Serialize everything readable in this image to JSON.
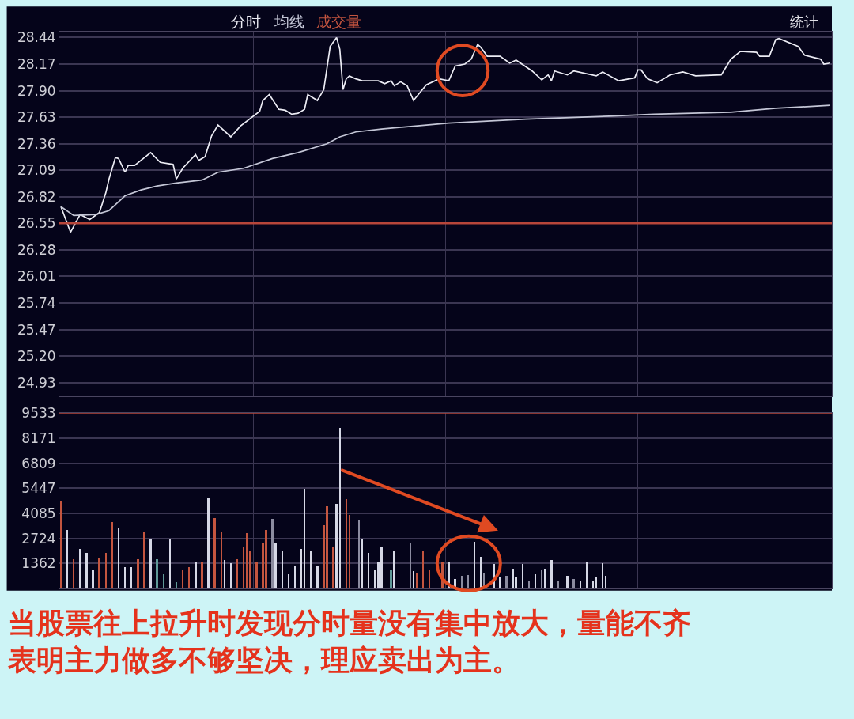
{
  "chart_data": [
    {
      "type": "line",
      "categories": [
        null,
        null,
        null,
        null,
        null,
        null,
        null,
        null,
        null,
        null,
        null,
        null,
        null,
        null,
        null,
        null,
        null,
        null,
        null,
        null,
        null,
        null,
        null,
        null,
        null,
        null,
        null,
        null,
        null,
        null,
        null,
        null,
        null,
        null,
        null,
        null,
        null,
        null,
        null,
        null,
        null,
        null,
        null,
        null,
        null,
        null,
        null,
        null,
        null,
        null,
        null,
        null,
        null,
        null,
        null,
        null,
        null,
        null,
        null,
        null,
        null,
        null,
        null,
        null,
        null,
        null,
        null,
        null,
        null,
        null,
        null,
        null,
        null,
        null,
        null,
        null,
        null,
        null,
        null,
        null,
        null,
        null,
        null,
        null,
        null,
        null,
        null,
        null,
        null,
        null,
        null,
        null,
        null,
        null,
        null,
        null,
        null,
        null,
        null,
        null,
        null,
        null,
        null,
        null,
        null,
        null,
        null,
        null,
        null,
        null,
        null,
        null,
        null,
        null,
        null,
        null,
        null,
        null,
        null,
        null,
        null,
        null,
        null,
        null,
        null,
        null,
        null,
        null,
        null,
        null,
        null,
        null,
        null,
        null,
        null,
        null,
        null,
        null,
        null,
        null,
        null,
        null,
        null,
        null,
        null,
        null,
        null,
        null,
        null,
        null,
        null,
        null,
        null,
        null,
        null,
        null,
        null,
        null,
        null,
        null,
        null,
        null,
        null,
        null,
        null,
        null,
        null,
        null,
        null,
        null,
        null,
        null,
        null,
        null,
        null,
        null,
        null,
        null,
        null,
        null,
        null,
        null,
        null,
        null,
        null,
        null,
        null,
        null,
        null,
        null,
        null,
        null,
        null,
        null,
        null,
        null,
        null,
        null,
        null,
        null,
        null,
        null,
        null,
        null,
        null,
        null,
        null,
        null,
        null,
        null,
        null,
        null,
        null,
        null,
        null,
        null,
        null,
        null,
        null,
        null,
        null,
        null,
        null,
        null,
        null,
        null,
        null,
        null,
        null,
        null,
        null,
        null,
        null,
        null,
        null,
        null,
        null,
        null,
        null,
        null,
        null
      ],
      "ylim": [
        24.79,
        28.5
      ],
      "yticks": [
        24.93,
        {
          "value": 25.2,
          "label": "25.20"
        },
        25.47,
        25.74,
        26.01,
        26.28,
        26.55,
        26.82,
        27.09,
        27.36,
        27.63,
        {
          "value": 27.9,
          "label": "27.90"
        },
        28.17,
        28.44
      ],
      "grid": true,
      "tick_labels": "y",
      "ref_lines": [
        {
          "axis": "y",
          "value": 26.55,
          "color": "#b8463a"
        }
      ],
      "annotations": [
        "统计"
      ],
      "series": [
        {
          "name": "分时",
          "color": "#ececf4",
          "values": [
            26.72,
            null,
            null,
            26.46,
            null,
            null,
            26.64,
            null,
            null,
            26.59,
            null,
            null,
            26.66,
            null,
            26.86,
            27.0,
            null,
            27.22,
            27.21,
            null,
            27.07,
            27.14,
            null,
            27.14,
            null,
            null,
            null,
            null,
            27.27,
            null,
            null,
            27.17,
            null,
            null,
            null,
            27.15,
            27.0,
            null,
            27.11,
            null,
            null,
            null,
            27.25,
            27.19,
            null,
            27.23,
            null,
            27.44,
            null,
            27.55,
            null,
            null,
            null,
            27.43,
            null,
            null,
            27.54,
            null,
            null,
            null,
            null,
            null,
            27.69,
            27.8,
            null,
            27.86,
            null,
            null,
            27.71,
            null,
            27.7,
            null,
            27.66,
            null,
            27.67,
            null,
            27.71,
            27.86,
            null,
            null,
            27.8,
            null,
            27.91,
            null,
            28.35,
            null,
            28.44,
            28.32,
            27.91,
            28.02,
            28.05,
            null,
            28.02,
            null,
            28.0,
            null,
            null,
            null,
            null,
            28.0,
            null,
            27.97,
            null,
            28.0,
            27.95,
            null,
            27.99,
            null,
            27.95,
            null,
            27.8,
            null,
            null,
            null,
            27.96,
            null,
            null,
            null,
            28.02,
            null,
            null,
            28.0,
            null,
            28.15,
            null,
            null,
            28.17,
            null,
            28.22,
            null,
            28.37,
            28.34,
            null,
            28.25,
            null,
            null,
            null,
            28.25,
            null,
            null,
            28.18,
            null,
            28.21,
            null,
            null,
            null,
            null,
            28.1,
            null,
            null,
            28.01,
            null,
            28.06,
            28.0,
            28.1,
            null,
            null,
            null,
            28.06,
            null,
            28.1,
            null,
            null,
            null,
            null,
            null,
            null,
            28.05,
            null,
            28.09,
            null,
            null,
            null,
            null,
            28.0,
            null,
            null,
            null,
            null,
            28.03,
            28.11,
            28.11,
            null,
            28.02,
            null,
            null,
            27.98,
            null,
            null,
            null,
            28.06,
            null,
            null,
            null,
            28.09,
            null,
            null,
            null,
            28.05,
            null,
            null,
            null,
            null,
            null,
            null,
            null,
            28.06,
            null,
            null,
            28.22,
            null,
            null,
            28.3,
            null,
            null,
            null,
            null,
            28.29,
            28.25,
            null,
            null,
            28.25,
            null,
            28.42,
            28.43,
            null,
            null,
            null,
            null,
            null,
            28.35,
            null,
            28.26,
            null,
            null,
            null,
            null,
            28.22,
            28.17,
            null,
            28.18
          ]
        },
        {
          "name": "均线",
          "color": "#c4c6d6",
          "values": [
            26.72,
            null,
            null,
            null,
            26.63,
            null,
            null,
            null,
            null,
            null,
            null,
            26.64,
            null,
            null,
            null,
            26.68,
            null,
            null,
            null,
            null,
            26.83,
            null,
            null,
            null,
            null,
            26.89,
            null,
            null,
            null,
            null,
            26.93,
            null,
            null,
            null,
            null,
            null,
            26.96,
            null,
            null,
            null,
            null,
            null,
            null,
            null,
            26.99,
            null,
            null,
            null,
            null,
            27.07,
            null,
            null,
            null,
            null,
            null,
            null,
            null,
            27.11,
            null,
            null,
            null,
            null,
            null,
            null,
            null,
            null,
            27.21,
            null,
            null,
            null,
            null,
            null,
            null,
            null,
            27.27,
            null,
            null,
            null,
            null,
            null,
            null,
            null,
            null,
            27.36,
            null,
            null,
            null,
            27.43,
            null,
            null,
            null,
            null,
            27.48,
            null,
            null,
            null,
            null,
            null,
            null,
            null,
            27.51,
            null,
            null,
            null,
            null,
            null,
            null,
            null,
            null,
            null,
            null,
            null,
            null,
            null,
            27.55,
            null,
            null,
            null,
            null,
            null,
            null,
            27.57,
            null,
            null,
            null,
            null,
            null,
            null,
            null,
            null,
            null,
            null,
            null,
            null,
            null,
            null,
            null,
            null,
            null,
            null,
            null,
            null,
            null,
            null,
            null,
            27.61,
            null,
            null,
            null,
            null,
            null,
            null,
            null,
            null,
            null,
            null,
            null,
            null,
            null,
            null,
            null,
            null,
            null,
            null,
            null,
            null,
            null,
            null,
            null,
            null,
            null,
            27.64,
            null,
            null,
            null,
            null,
            null,
            null,
            null,
            null,
            null,
            null,
            null,
            null,
            null,
            27.66,
            null,
            null,
            null,
            null,
            null,
            null,
            null,
            null,
            null,
            null,
            null,
            null,
            null,
            null,
            null,
            null,
            null,
            null,
            null,
            null,
            null,
            null,
            null,
            27.68,
            null,
            null,
            null,
            null,
            null,
            null,
            null,
            null,
            null,
            null,
            null,
            null,
            null,
            27.72,
            null,
            null,
            null,
            null,
            null,
            null,
            null,
            null,
            null,
            null,
            null,
            null,
            null,
            null,
            null,
            null,
            27.75
          ]
        }
      ]
    },
    {
      "type": "bar",
      "categories": [
        null,
        null,
        null,
        null,
        null,
        null,
        null,
        null,
        null,
        null,
        null,
        null,
        null,
        null,
        null,
        null,
        null,
        null,
        null,
        null,
        null,
        null,
        null,
        null,
        null,
        null,
        null,
        null,
        null,
        null,
        null,
        null,
        null,
        null,
        null,
        null,
        null,
        null,
        null,
        null,
        null,
        null,
        null,
        null,
        null,
        null,
        null,
        null,
        null,
        null,
        null,
        null,
        null,
        null,
        null,
        null,
        null,
        null,
        null,
        null,
        null,
        null,
        null,
        null,
        null,
        null,
        null,
        null,
        null,
        null,
        null,
        null,
        null,
        null,
        null,
        null,
        null,
        null,
        null,
        null,
        null,
        null,
        null,
        null,
        null,
        null,
        null,
        null,
        null,
        null,
        null,
        null,
        null,
        null,
        null,
        null,
        null,
        null,
        null,
        null,
        null,
        null,
        null,
        null,
        null,
        null,
        null,
        null,
        null,
        null,
        null,
        null,
        null,
        null,
        null,
        null,
        null,
        null,
        null,
        null,
        null,
        null,
        null,
        null,
        null,
        null,
        null,
        null,
        null,
        null,
        null,
        null,
        null,
        null,
        null,
        null,
        null,
        null,
        null,
        null,
        null,
        null,
        null,
        null,
        null,
        null,
        null,
        null,
        null,
        null,
        null,
        null,
        null,
        null,
        null,
        null,
        null,
        null,
        null,
        null,
        null,
        null,
        null,
        null,
        null,
        null,
        null,
        null,
        null,
        null,
        null,
        null,
        null,
        null,
        null,
        null,
        null,
        null,
        null,
        null,
        null,
        null,
        null,
        null,
        null,
        null,
        null,
        null,
        null,
        null,
        null,
        null,
        null,
        null,
        null,
        null,
        null,
        null,
        null,
        null,
        null,
        null,
        null,
        null,
        null,
        null,
        null,
        null,
        null,
        null,
        null,
        null,
        null,
        null,
        null,
        null,
        null,
        null,
        null,
        null,
        null,
        null,
        null,
        null,
        null,
        null,
        null,
        null,
        null,
        null,
        null,
        null,
        null,
        null,
        null,
        null,
        null,
        null,
        null,
        null,
        null
      ],
      "ylim": [
        0,
        9533
      ],
      "yticks": [
        1362,
        2724,
        4085,
        5447,
        6809,
        8171,
        9533
      ],
      "grid": true,
      "tick_labels": "y",
      "ref_lines": [
        {
          "axis": "y",
          "value": 9533,
          "color": "#b8463a"
        }
      ],
      "annotations": [
        "当股票往上拉升时发现分时量没有集中放大，量能不齐表明主力做多不够坚决，理应卖出为主。"
      ],
      "series": [
        {
          "name": "成交量",
          "color": "#c4553f",
          "values": [
            4760,
            null,
            3150,
            null,
            1590,
            null,
            2140,
            null,
            1930,
            null,
            970,
            null,
            1660,
            null,
            1930,
            null,
            3590,
            null,
            3240,
            null,
            1170,
            null,
            1170,
            null,
            1590,
            null,
            3100,
            null,
            2690,
            null,
            1590,
            null,
            760,
            null,
            2690,
            null,
            350,
            null,
            970,
            null,
            1170,
            null,
            1450,
            null,
            1450,
            null,
            4870,
            null,
            3800,
            null,
            3040,
            1520,
            null,
            1380,
            null,
            1590,
            null,
            2280,
            3010,
            2000,
            null,
            1450,
            null,
            2420,
            3150,
            null,
            3770,
            2420,
            null,
            2070,
            null,
            760,
            null,
            1240,
            null,
            2140,
            5420,
            null,
            2000,
            null,
            1200,
            null,
            3450,
            4480,
            null,
            2280,
            4600,
            8700,
            null,
            4830,
            4000,
            null,
            null,
            3730,
            2690,
            null,
            1930,
            null,
            1040,
            1450,
            2240,
            null,
            null,
            1040,
            2000,
            null,
            null,
            null,
            null,
            2440,
            950,
            800,
            null,
            2020,
            null,
            1020,
            null,
            null,
            null,
            1440,
            null,
            1400,
            null,
            510,
            null,
            660,
            null,
            730,
            null,
            2520,
            null,
            1690,
            870,
            null,
            null,
            1340,
            null,
            590,
            null,
            660,
            null,
            1060,
            590,
            null,
            1340,
            null,
            440,
            null,
            770,
            null,
            1020,
            1060,
            null,
            1520,
            null,
            440,
            null,
            null,
            690,
            null,
            510,
            null,
            440,
            null,
            1420,
            null,
            440,
            590,
            null,
            1370,
            690,
            null,
            null,
            null,
            null,
            null,
            null,
            null,
            null,
            null,
            null,
            null,
            null,
            null,
            null,
            null,
            null,
            null,
            null,
            null,
            null,
            null,
            null,
            null,
            null,
            null,
            null,
            null,
            null,
            null,
            null,
            null,
            null,
            null,
            null,
            null,
            null,
            null,
            null,
            null,
            null,
            null,
            null,
            null,
            null,
            null,
            null,
            null,
            null,
            null,
            null,
            null,
            null,
            null,
            null,
            null,
            null,
            null,
            null,
            null,
            null,
            null,
            null,
            null,
            null,
            null,
            null,
            null,
            null,
            null,
            null
          ],
          "colors": [
            "#c4553f",
            null,
            "#d6d8e6",
            null,
            "#c4553f",
            null,
            "#d6d8e6",
            null,
            "#d6d8e6",
            null,
            "#d6d8e6",
            null,
            "#c4553f",
            null,
            "#c4553f",
            null,
            "#c4553f",
            null,
            "#d6d8e6",
            null,
            "#d6d8e6",
            null,
            "#d6d8e6",
            null,
            "#c4553f",
            null,
            "#c4553f",
            null,
            "#d6d8e6",
            null,
            "#5f9a98",
            null,
            "#5f9a98",
            null,
            "#d6d8e6",
            null,
            "#5f9a98",
            null,
            "#c4553f",
            null,
            "#c4553f",
            null,
            "#d6d8e6",
            null,
            "#c4553f",
            null,
            "#d6d8e6",
            null,
            "#c4553f",
            null,
            "#c4553f",
            "#d6d8e6",
            null,
            "#d6d8e6",
            null,
            "#c4553f",
            null,
            "#c4553f",
            "#c4553f",
            "#c4553f",
            null,
            "#c4553f",
            null,
            "#c4553f",
            "#c4553f",
            null,
            "#8c8ca0",
            "#d6d8e6",
            null,
            "#d6d8e6",
            null,
            "#d6d8e6",
            null,
            "#d6d8e6",
            null,
            "#d6d8e6",
            "#d6d8e6",
            null,
            "#d6d8e6",
            null,
            "#d6d8e6",
            null,
            "#c4553f",
            "#c4553f",
            null,
            "#c4553f",
            "#d6d8e6",
            "#d6d8e6",
            null,
            "#c4553f",
            "#c4553f",
            null,
            null,
            "#8c8ca0",
            "#d6d8e6",
            null,
            "#d6d8e6",
            null,
            "#d6d8e6",
            "#d6d8e6",
            "#d6d8e6",
            null,
            null,
            "#5f9a98",
            "#d6d8e6",
            null,
            null,
            null,
            null,
            "#8c8ca0",
            "#d6d8e6",
            "#c4553f",
            null,
            "#c4553f",
            null,
            "#c4553f",
            null,
            null,
            null,
            "#c4553f",
            null,
            "#d6d8e6",
            null,
            "#d6d8e6",
            null,
            "#8c8ca0",
            null,
            "#8c8ca0",
            null,
            "#d6d8e6",
            null,
            "#d6d8e6",
            "#8c8ca0",
            null,
            null,
            "#d6d8e6",
            null,
            "#d6d8e6",
            null,
            "#8c8ca0",
            null,
            "#d6d8e6",
            "#d6d8e6",
            null,
            "#d6d8e6",
            null,
            "#8c8ca0",
            null,
            "#d6d8e6",
            null,
            "#8c8ca0",
            "#d6d8e6",
            null,
            "#d6d8e6",
            null,
            "#8c8ca0",
            null,
            null,
            "#d6d8e6",
            null,
            "#8c8ca0",
            null,
            "#d6d8e6",
            null,
            "#d6d8e6",
            null,
            "#d6d8e6",
            "#d6d8e6",
            null,
            "#d6d8e6",
            "#d6d8e6",
            null,
            null,
            null,
            null,
            null,
            null,
            null,
            null,
            null,
            null,
            null,
            null,
            null,
            null,
            null,
            null,
            null,
            null,
            null,
            null,
            null,
            null,
            null,
            null,
            null,
            null,
            null,
            null,
            null,
            null,
            null,
            null,
            null,
            null,
            null,
            null,
            null,
            null,
            null,
            null,
            null,
            null,
            null,
            null,
            null,
            null,
            null,
            null,
            null,
            null,
            null,
            null,
            null,
            null,
            null,
            null,
            null,
            null,
            null,
            null,
            null,
            null,
            null,
            null,
            null,
            null,
            null,
            null,
            null,
            null
          ]
        }
      ]
    }
  ]
}
